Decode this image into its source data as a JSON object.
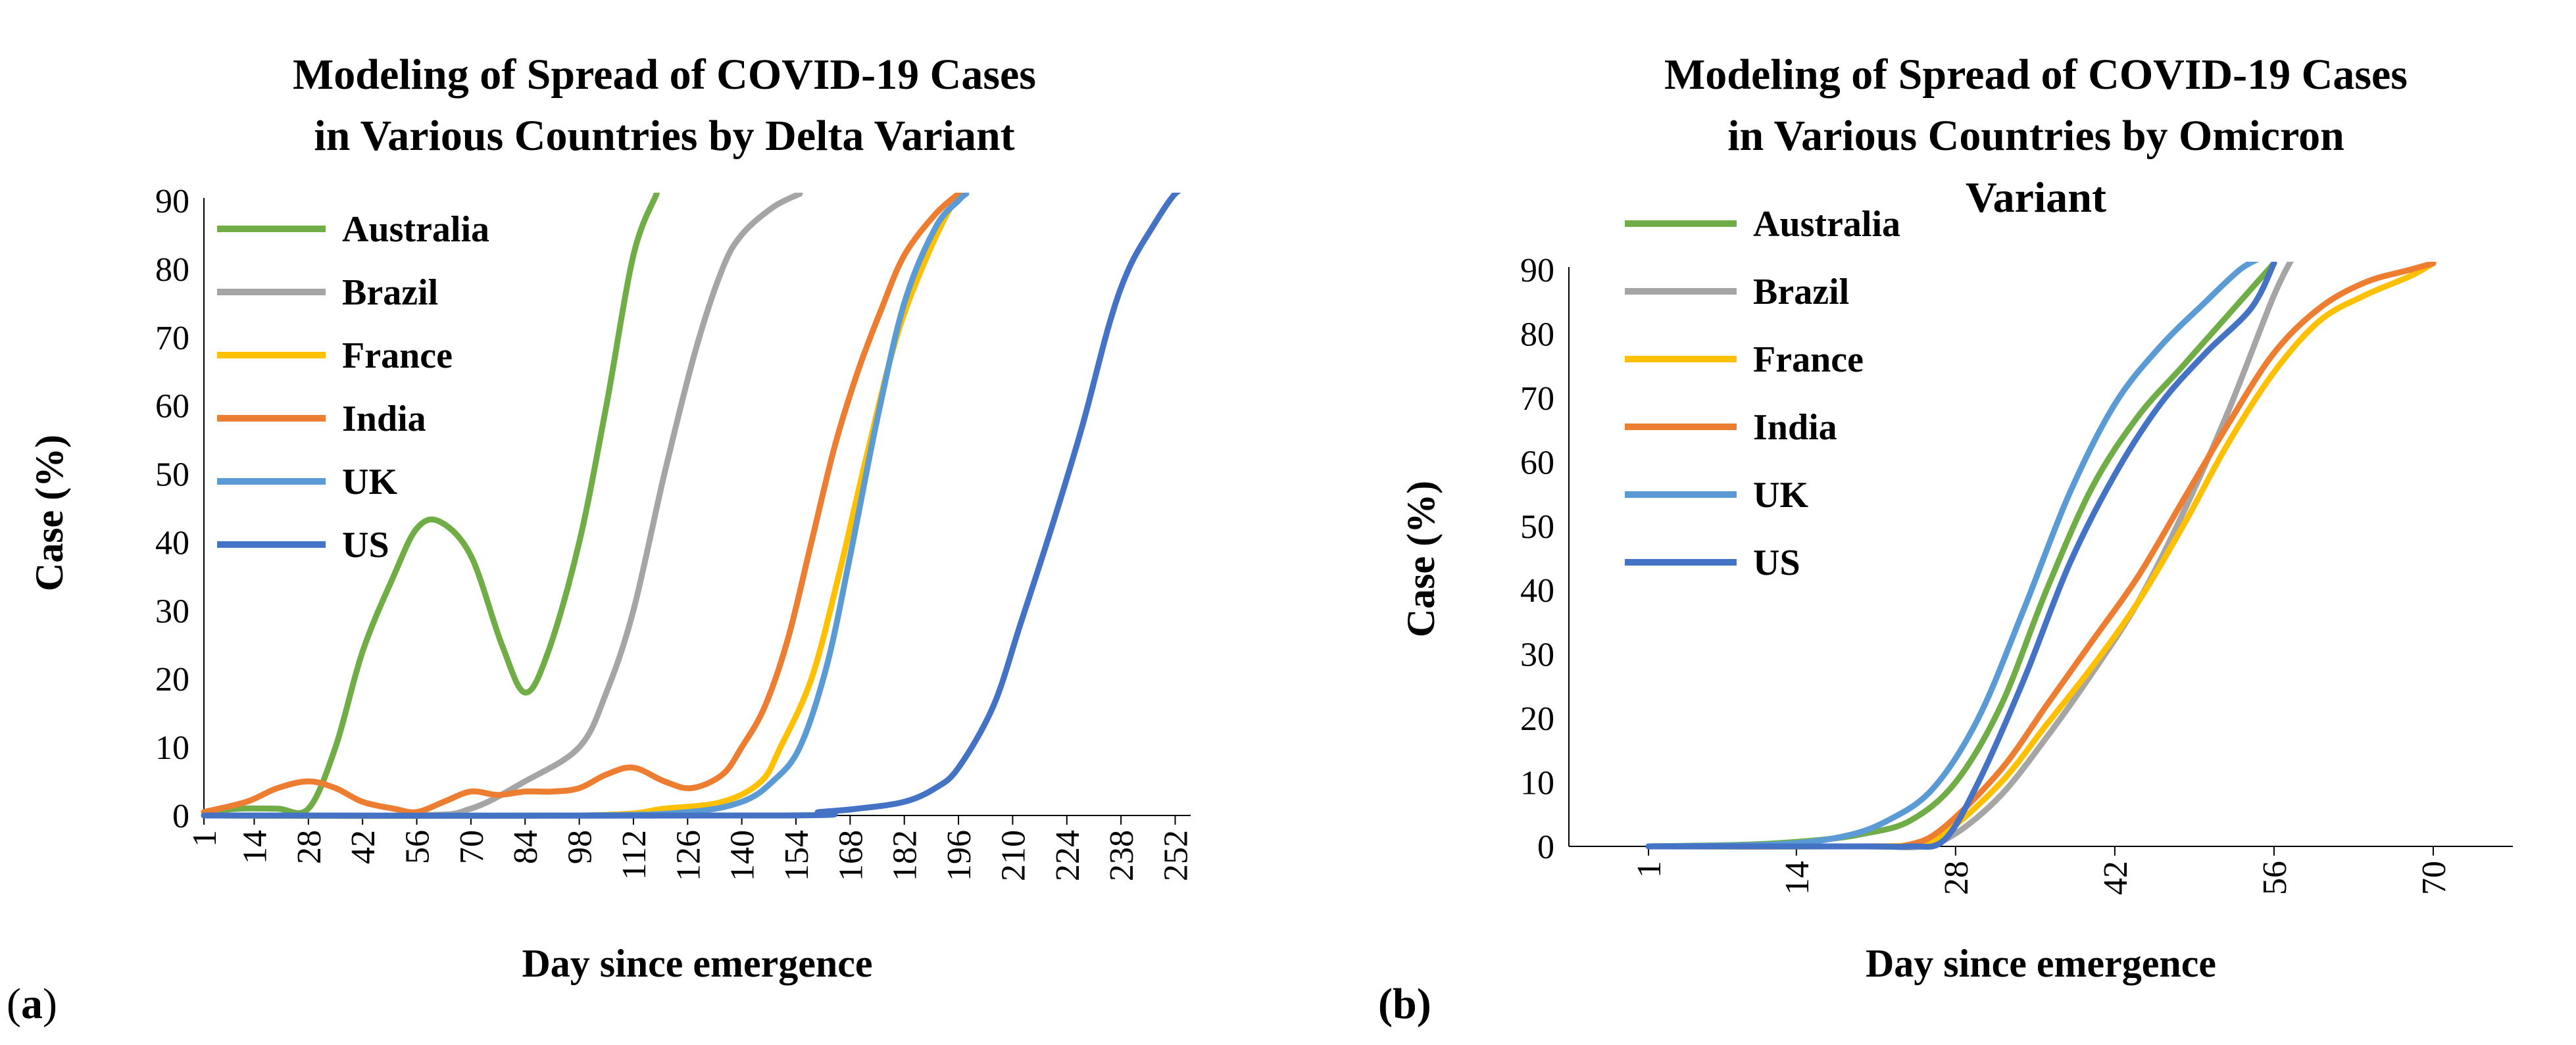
{
  "colors": {
    "Australia": "#70AD47",
    "Brazil": "#A5A5A5",
    "France": "#FFC000",
    "India": "#ED7D31",
    "UK": "#5B9BD5",
    "US": "#4472C4"
  },
  "chart_data": [
    {
      "id": "a",
      "panel_label_open": "(",
      "panel_label_letter": "a",
      "panel_label_close": ")",
      "type": "line",
      "title_lines": [
        "Modeling of Spread of COVID-19 Cases",
        "in Various Countries by Delta Variant"
      ],
      "xlabel": "Day since emergence",
      "ylabel": "Case (%)",
      "xlim": [
        1,
        256
      ],
      "ylim": [
        0,
        90
      ],
      "yticks": [
        0,
        10,
        20,
        30,
        40,
        50,
        60,
        70,
        80,
        90
      ],
      "xticks": [
        1,
        14,
        28,
        42,
        56,
        70,
        84,
        98,
        112,
        126,
        140,
        154,
        168,
        182,
        196,
        210,
        224,
        238,
        252
      ],
      "legend_position": "top-left",
      "series": [
        {
          "name": "Australia",
          "x": [
            1,
            10,
            20,
            28,
            35,
            42,
            50,
            56,
            62,
            70,
            78,
            84,
            90,
            98,
            105,
            112,
            118
          ],
          "y": [
            0.5,
            1,
            1,
            1,
            10,
            24,
            35,
            42,
            43,
            38,
            25,
            18,
            24,
            40,
            60,
            82,
            91
          ]
        },
        {
          "name": "Brazil",
          "x": [
            1,
            56,
            70,
            84,
            98,
            105,
            112,
            120,
            128,
            135,
            140,
            148,
            155
          ],
          "y": [
            0,
            0,
            1,
            5,
            10,
            18,
            30,
            50,
            68,
            80,
            85,
            89,
            91
          ]
        },
        {
          "name": "France",
          "x": [
            1,
            98,
            120,
            135,
            145,
            150,
            158,
            165,
            172,
            180,
            188,
            195,
            198
          ],
          "y": [
            0,
            0,
            1,
            2,
            5,
            10,
            20,
            35,
            52,
            70,
            82,
            90,
            91
          ]
        },
        {
          "name": "India",
          "x": [
            1,
            12,
            20,
            28,
            35,
            42,
            50,
            56,
            63,
            70,
            77,
            84,
            91,
            98,
            105,
            112,
            120,
            127,
            135,
            140,
            146,
            152,
            158,
            164,
            170,
            176,
            182,
            190,
            196
          ],
          "y": [
            0.5,
            2,
            4,
            5,
            4,
            2,
            1,
            0.5,
            2,
            3.5,
            3,
            3.5,
            3.5,
            4,
            6,
            7,
            5,
            4,
            6,
            10,
            16,
            26,
            40,
            54,
            65,
            74,
            82,
            88,
            91
          ]
        },
        {
          "name": "UK",
          "x": [
            1,
            98,
            126,
            140,
            148,
            155,
            162,
            168,
            175,
            182,
            190,
            196,
            198
          ],
          "y": [
            0,
            0,
            0.5,
            2,
            5,
            10,
            22,
            38,
            58,
            75,
            86,
            90,
            91
          ]
        },
        {
          "name": "US",
          "x": [
            1,
            150,
            160,
            170,
            182,
            190,
            196,
            205,
            212,
            220,
            228,
            235,
            240,
            246,
            252,
            256
          ],
          "y": [
            0,
            0,
            0.5,
            1,
            2,
            4,
            7,
            16,
            28,
            42,
            57,
            72,
            80,
            86,
            91,
            92
          ]
        }
      ]
    },
    {
      "id": "b",
      "panel_label_open": "(",
      "panel_label_letter": "b",
      "panel_label_close": ")",
      "type": "line",
      "title_lines": [
        "Modeling of Spread of COVID-19 Cases",
        "in Various Countries by Omicron",
        "Variant"
      ],
      "xlabel": "Day since emergence",
      "ylabel": "Case (%)",
      "xlim": [
        -6,
        77
      ],
      "ylim": [
        0,
        90
      ],
      "yticks": [
        0,
        10,
        20,
        30,
        40,
        50,
        60,
        70,
        80,
        90
      ],
      "xticks": [
        1,
        14,
        28,
        42,
        56,
        70
      ],
      "legend_position": "top-left",
      "series": [
        {
          "name": "Australia",
          "x": [
            1,
            10,
            16,
            20,
            24,
            28,
            32,
            36,
            40,
            44,
            48,
            52,
            56
          ],
          "y": [
            0,
            0.3,
            1,
            2,
            4,
            10,
            22,
            40,
            56,
            67,
            75,
            83,
            91
          ]
        },
        {
          "name": "Brazil",
          "x": [
            1,
            20,
            25,
            28,
            32,
            36,
            40,
            44,
            48,
            52,
            56,
            58
          ],
          "y": [
            0,
            0,
            0,
            2,
            8,
            17,
            27,
            38,
            52,
            68,
            86,
            93
          ]
        },
        {
          "name": "France",
          "x": [
            1,
            20,
            24,
            27,
            32,
            36,
            40,
            44,
            48,
            52,
            56,
            60,
            64,
            68,
            70
          ],
          "y": [
            0,
            0,
            0.3,
            2,
            10,
            19,
            28,
            38,
            50,
            63,
            74,
            82,
            86,
            89,
            91
          ]
        },
        {
          "name": "India",
          "x": [
            1,
            20,
            24,
            27,
            32,
            36,
            40,
            44,
            48,
            52,
            56,
            60,
            64,
            68,
            70
          ],
          "y": [
            0,
            0,
            0.3,
            3,
            12,
            22,
            32,
            42,
            54,
            66,
            77,
            84,
            88,
            90,
            91
          ]
        },
        {
          "name": "UK",
          "x": [
            1,
            12,
            18,
            22,
            26,
            30,
            34,
            38,
            42,
            46,
            50,
            53,
            55
          ],
          "y": [
            0,
            0.3,
            1.5,
            4,
            9,
            20,
            37,
            55,
            69,
            78,
            85,
            90,
            92
          ]
        },
        {
          "name": "US",
          "x": [
            1,
            20,
            24,
            27,
            30,
            34,
            38,
            42,
            46,
            50,
            54,
            56
          ],
          "y": [
            0,
            0,
            0,
            1,
            10,
            26,
            44,
            58,
            69,
            77,
            84,
            91
          ]
        }
      ]
    }
  ]
}
